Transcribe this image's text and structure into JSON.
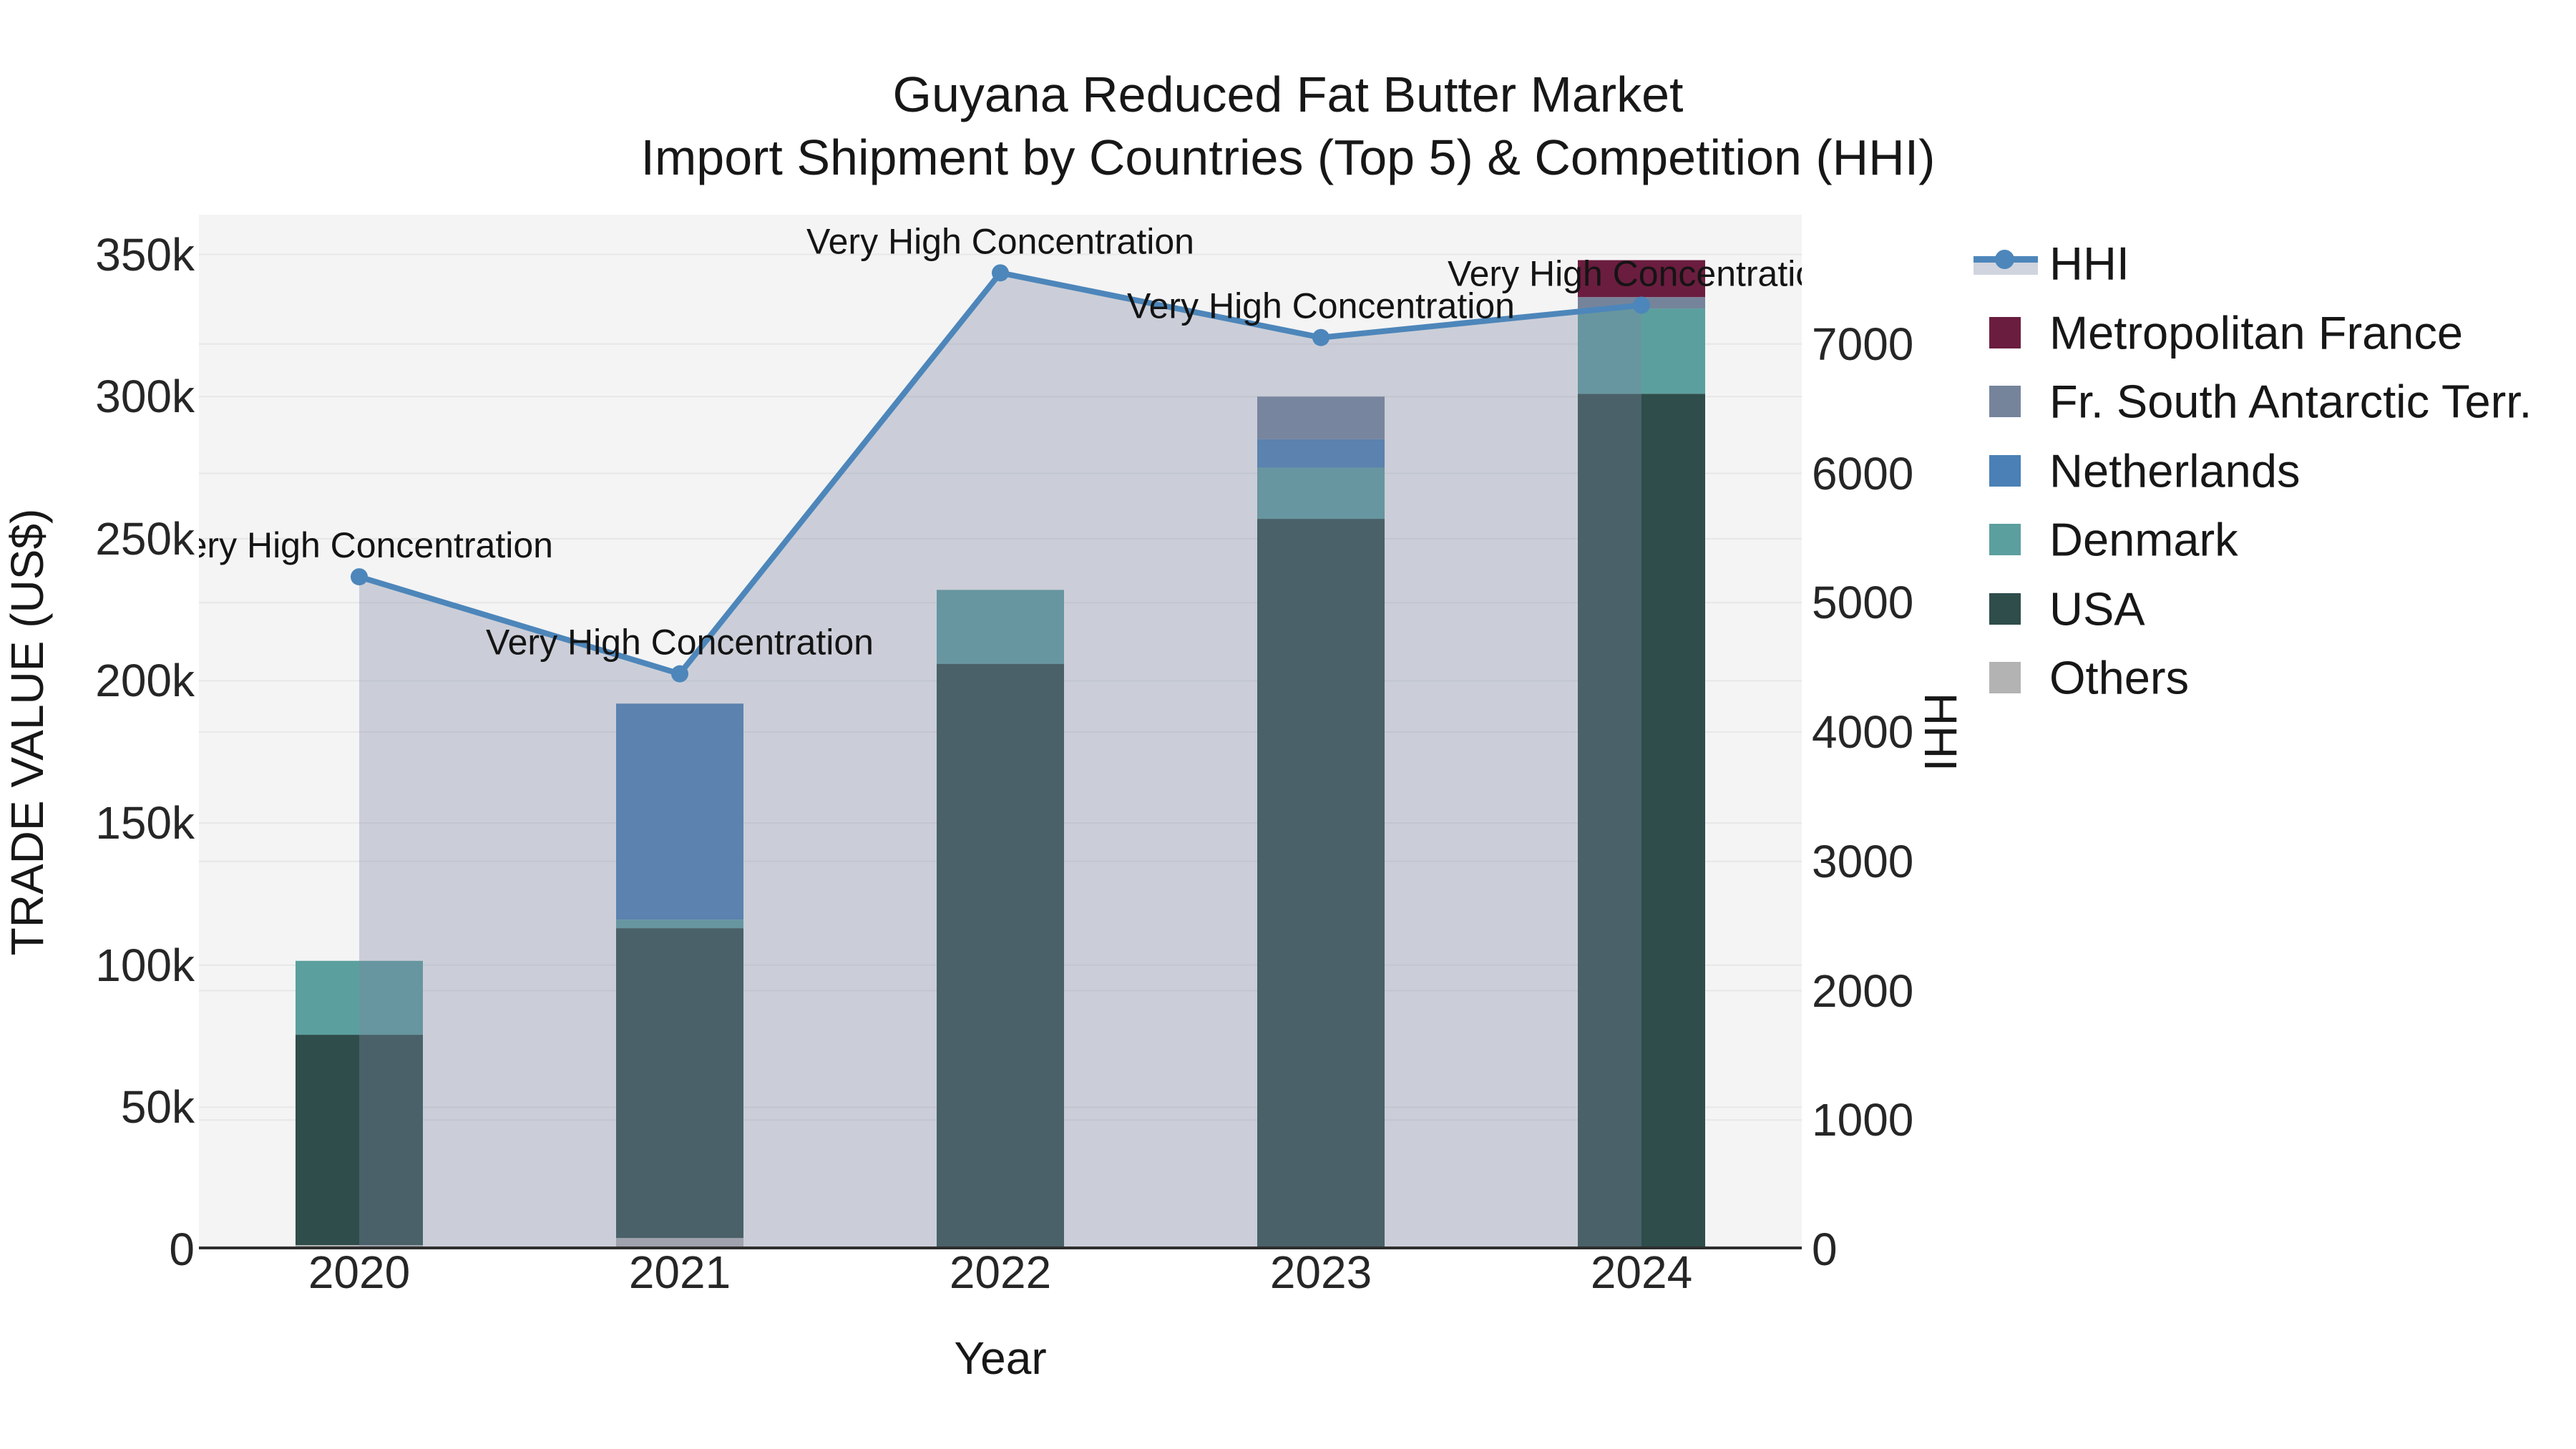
{
  "title": {
    "line1": "Guyana Reduced Fat Butter Market",
    "line2": "Import Shipment by Countries (Top 5) & Competition (HHI)"
  },
  "axes": {
    "left": {
      "label": "TRADE VALUE (US$)",
      "ticks": [
        "0",
        "50k",
        "100k",
        "150k",
        "200k",
        "250k",
        "300k",
        "350k"
      ],
      "tick_values": [
        0,
        50000,
        100000,
        150000,
        200000,
        250000,
        300000,
        350000
      ],
      "max": 364000
    },
    "right": {
      "label": "HHI",
      "ticks": [
        "0",
        "1000",
        "2000",
        "3000",
        "4000",
        "5000",
        "6000",
        "7000"
      ],
      "tick_values": [
        0,
        1000,
        2000,
        3000,
        4000,
        5000,
        6000,
        7000
      ],
      "max": 8000
    },
    "x": {
      "label": "Year",
      "categories": [
        "2020",
        "2021",
        "2022",
        "2023",
        "2024"
      ]
    }
  },
  "legend": {
    "items": [
      {
        "label": "HHI",
        "type": "line",
        "color": "#4d86ba",
        "band_color": "#d0d4de"
      },
      {
        "label": "Metropolitan France",
        "type": "patch",
        "color": "#6b1d3f"
      },
      {
        "label": "Fr. South Antarctic Terr.",
        "type": "patch",
        "color": "#75849b"
      },
      {
        "label": "Netherlands",
        "type": "patch",
        "color": "#4a80b5"
      },
      {
        "label": "Denmark",
        "type": "patch",
        "color": "#5b9f9e"
      },
      {
        "label": "USA",
        "type": "patch",
        "color": "#2e4d4b"
      },
      {
        "label": "Others",
        "type": "patch",
        "color": "#b3b3b3"
      }
    ]
  },
  "chart_data": {
    "type": "bar",
    "subtype": "stacked-bar-with-line",
    "title": "Guyana Reduced Fat Butter Market — Import Shipment by Countries (Top 5) & Competition (HHI)",
    "xlabel": "Year",
    "ylabel_left": "TRADE VALUE (US$)",
    "ylabel_right": "HHI",
    "categories": [
      "2020",
      "2021",
      "2022",
      "2023",
      "2024"
    ],
    "ylim_left": [
      0,
      364000
    ],
    "ylim_right": [
      0,
      8000
    ],
    "grid": true,
    "legend_position": "upper-right-outside",
    "series": [
      {
        "name": "Others",
        "stack_order": 1,
        "color": "#b3b3b3",
        "values": [
          1500,
          4000,
          0,
          0,
          0
        ]
      },
      {
        "name": "USA",
        "stack_order": 2,
        "color": "#2e4d4b",
        "values": [
          74000,
          109000,
          206000,
          257000,
          301000
        ]
      },
      {
        "name": "Denmark",
        "stack_order": 3,
        "color": "#5b9f9e",
        "values": [
          26000,
          3000,
          26000,
          18000,
          30000
        ]
      },
      {
        "name": "Netherlands",
        "stack_order": 4,
        "color": "#4a80b5",
        "values": [
          0,
          76000,
          0,
          10000,
          0
        ]
      },
      {
        "name": "Fr. South Antarctic Terr.",
        "stack_order": 5,
        "color": "#75849b",
        "values": [
          0,
          0,
          0,
          15000,
          4000
        ]
      },
      {
        "name": "Metropolitan France",
        "stack_order": 6,
        "color": "#6b1d3f",
        "values": [
          0,
          0,
          0,
          0,
          13000
        ]
      }
    ],
    "bar_totals": [
      101500,
      192000,
      232000,
      300000,
      348000
    ],
    "line_series": {
      "name": "HHI",
      "axis": "right",
      "color": "#4d86ba",
      "area_fill": "rgba(125,134,162,0.35)",
      "values": [
        5200,
        4450,
        7550,
        7050,
        7300
      ]
    },
    "annotation_text": "Very High Concentration",
    "annotated_points": [
      "2020",
      "2021",
      "2022",
      "2023",
      "2024"
    ]
  },
  "style": {
    "plot_bg": "#f4f4f4",
    "grid_color": "#e7e7e7",
    "axis_line_color": "#2e2e2e",
    "text_color": "#171717"
  }
}
